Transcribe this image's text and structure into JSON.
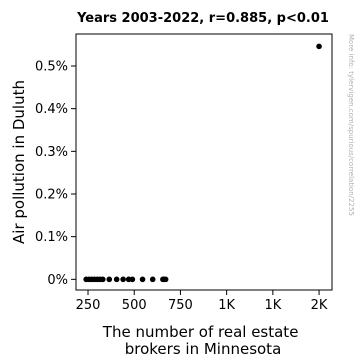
{
  "chart_data": {
    "type": "scatter",
    "title": "Years 2003-2022, r=0.885, p<0.01",
    "xlabel": [
      "The number of real estate",
      "brokers in Minnesota"
    ],
    "ylabel": "Air pollution in Duluth",
    "watermark": "More info: tylervigen.com/spurious/correlation/2255",
    "x_ticks": [
      {
        "value": 250,
        "label": "250"
      },
      {
        "value": 500,
        "label": "500"
      },
      {
        "value": 750,
        "label": "750"
      },
      {
        "value": 1000,
        "label": "1K"
      },
      {
        "value": 1250,
        "label": "1K"
      },
      {
        "value": 1500,
        "label": "2K"
      }
    ],
    "y_ticks": [
      {
        "value": 0.0,
        "label": "0%"
      },
      {
        "value": 0.1,
        "label": "0.1%"
      },
      {
        "value": 0.2,
        "label": "0.2%"
      },
      {
        "value": 0.3,
        "label": "0.3%"
      },
      {
        "value": 0.4,
        "label": "0.4%"
      },
      {
        "value": 0.5,
        "label": "0.5%"
      }
    ],
    "xlim": [
      185,
      1570
    ],
    "ylim": [
      -0.025,
      0.575
    ],
    "grid": false,
    "points": [
      {
        "x": 240,
        "y": 0.0
      },
      {
        "x": 255,
        "y": 0.0
      },
      {
        "x": 270,
        "y": 0.0
      },
      {
        "x": 285,
        "y": 0.0
      },
      {
        "x": 300,
        "y": 0.0
      },
      {
        "x": 315,
        "y": 0.0
      },
      {
        "x": 330,
        "y": 0.0
      },
      {
        "x": 365,
        "y": 0.0
      },
      {
        "x": 405,
        "y": 0.0
      },
      {
        "x": 440,
        "y": 0.0
      },
      {
        "x": 470,
        "y": 0.0
      },
      {
        "x": 490,
        "y": 0.0
      },
      {
        "x": 545,
        "y": 0.0
      },
      {
        "x": 600,
        "y": 0.0
      },
      {
        "x": 655,
        "y": 0.0
      },
      {
        "x": 660,
        "y": 0.0
      },
      {
        "x": 670,
        "y": 0.0
      },
      {
        "x": 1500,
        "y": 0.546
      }
    ],
    "colors": {
      "point": "#000000",
      "axis": "#000000"
    }
  }
}
